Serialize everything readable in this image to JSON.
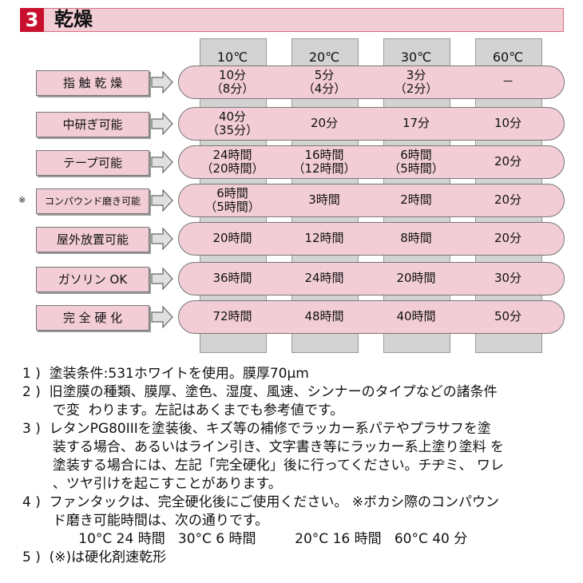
{
  "header": {
    "number": "3",
    "title": "乾燥"
  },
  "columns": [
    "10℃",
    "20℃",
    "30℃",
    "60℃"
  ],
  "rows": [
    {
      "label": "指 触 乾 燥",
      "values": [
        [
          "10分",
          "（8分）"
        ],
        [
          "5分",
          "（4分）"
        ],
        [
          "3分",
          "（2分）"
        ],
        [
          "－"
        ]
      ]
    },
    {
      "label": "中研ぎ可能",
      "values": [
        [
          "40分",
          "（35分）"
        ],
        [
          "20分"
        ],
        [
          "17分"
        ],
        [
          "10分"
        ]
      ]
    },
    {
      "label": "テープ可能",
      "values": [
        [
          "24時間",
          "（20時間）"
        ],
        [
          "16時間",
          "（12時間）"
        ],
        [
          "6時間",
          "（5時間）"
        ],
        [
          "20分"
        ]
      ]
    },
    {
      "label": "コンパウンド磨き可能",
      "mark": "※",
      "values": [
        [
          "6時間",
          "（5時間）"
        ],
        [
          "3時間"
        ],
        [
          "2時間"
        ],
        [
          "20分"
        ]
      ]
    },
    {
      "label": "屋外放置可能",
      "values": [
        [
          "20時間"
        ],
        [
          "12時間"
        ],
        [
          "8時間"
        ],
        [
          "20分"
        ]
      ]
    },
    {
      "label": "ガソリン OK",
      "values": [
        [
          "36時間"
        ],
        [
          "24時間"
        ],
        [
          "20時間"
        ],
        [
          "30分"
        ]
      ]
    },
    {
      "label": "完 全 硬 化",
      "values": [
        [
          "72時間"
        ],
        [
          "48時間"
        ],
        [
          "40時間"
        ],
        [
          "50分"
        ]
      ]
    }
  ],
  "notes": [
    "1 )  塗装条件:531ホワイトを使用。膜厚70μm",
    "2 )  旧塗膜の種類、膜厚、塗色、湿度、風速、シンナーのタイプなどの諸条件\n       で変  わります。左記はあくまでも参考値です。",
    "3 )  レタンPG80IIIを塗装後、キズ等の補修でラッカー系パテやプラサフを塗\n       装する場合、あるいはライン引き、文字書き等にラッカー系上塗り塗料 を\n       塗装する場合には、左記「完全硬化」後に行ってください。チヂミ、 ワレ\n       、ツヤ引けを起こすことがあります。",
    "4 )  ファンタックは、完全硬化後にご使用ください。 ※ボカシ際のコンパウン\n       ド磨き可能時間は、次の通りです。\n             10°C 24 時間   30°C 6 時間         20°C 16 時間   60°C 40 分",
    "5 )  (※)は硬化剤速乾形"
  ]
}
